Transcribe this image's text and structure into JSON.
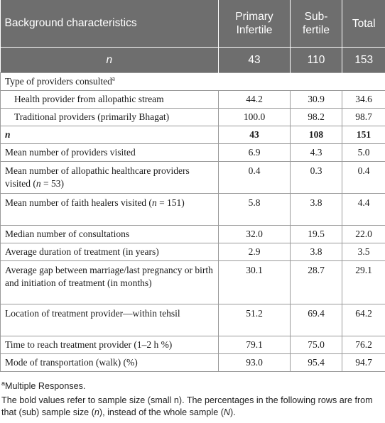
{
  "header": {
    "col_label": "Background characteristics",
    "col_primary": [
      "Primary",
      "Infertile"
    ],
    "col_sub": [
      "Sub-",
      "fertile"
    ],
    "col_total": "Total",
    "n_label": "n",
    "n_primary": "43",
    "n_sub": "110",
    "n_total": "153"
  },
  "section": {
    "label": "Type of providers consulted",
    "sup": "a"
  },
  "rows": [
    {
      "label": "Health provider from allopathic stream",
      "primary": "44.2",
      "sub": "30.9",
      "total": "34.6"
    },
    {
      "label": "Traditional providers (primarily Bhagat)",
      "primary": "100.0",
      "sub": "98.2",
      "total": "98.7"
    },
    {
      "label": "n",
      "primary": "43",
      "sub": "108",
      "total": "151"
    },
    {
      "label": "Mean number of providers visited",
      "primary": "6.9",
      "sub": "4.3",
      "total": "5.0"
    },
    {
      "label_a": "Mean number of allopathic healthcare providers visited (",
      "label_n": "n",
      "label_b": " = 53)",
      "primary": "0.4",
      "sub": "0.3",
      "total": "0.4"
    },
    {
      "label_a": "Mean number of faith healers visited (",
      "label_n": "n",
      "label_b": " = 151)",
      "primary": "5.8",
      "sub": "3.8",
      "total": "4.4"
    },
    {
      "label": "Median number of consultations",
      "primary": "32.0",
      "sub": "19.5",
      "total": "22.0"
    },
    {
      "label": "Average duration of treatment (in years)",
      "primary": "2.9",
      "sub": "3.8",
      "total": "3.5"
    },
    {
      "label": "Average gap between marriage/last pregnancy or birth and initiation of treatment (in months)",
      "primary": "30.1",
      "sub": "28.7",
      "total": "29.1"
    },
    {
      "label": "Location of treatment provider—within tehsil",
      "primary": "51.2",
      "sub": "69.4",
      "total": "64.2"
    },
    {
      "label": "Time to reach treatment provider (1–2 h %)",
      "primary": "79.1",
      "sub": "75.0",
      "total": "76.2"
    },
    {
      "label": "Mode of transportation (walk) (%)",
      "primary": "93.0",
      "sub": "95.4",
      "total": "94.7"
    }
  ],
  "notes": {
    "footnote_sup": "a",
    "footnote_text": "Multiple Responses.",
    "bold_note_a": "The bold values refer to sample size (small n). The percentages in the following rows are from that (sub) sample size (",
    "bold_note_n": "n",
    "bold_note_b": "), instead of the whole sample (",
    "bold_note_N": "N",
    "bold_note_c": ")."
  }
}
